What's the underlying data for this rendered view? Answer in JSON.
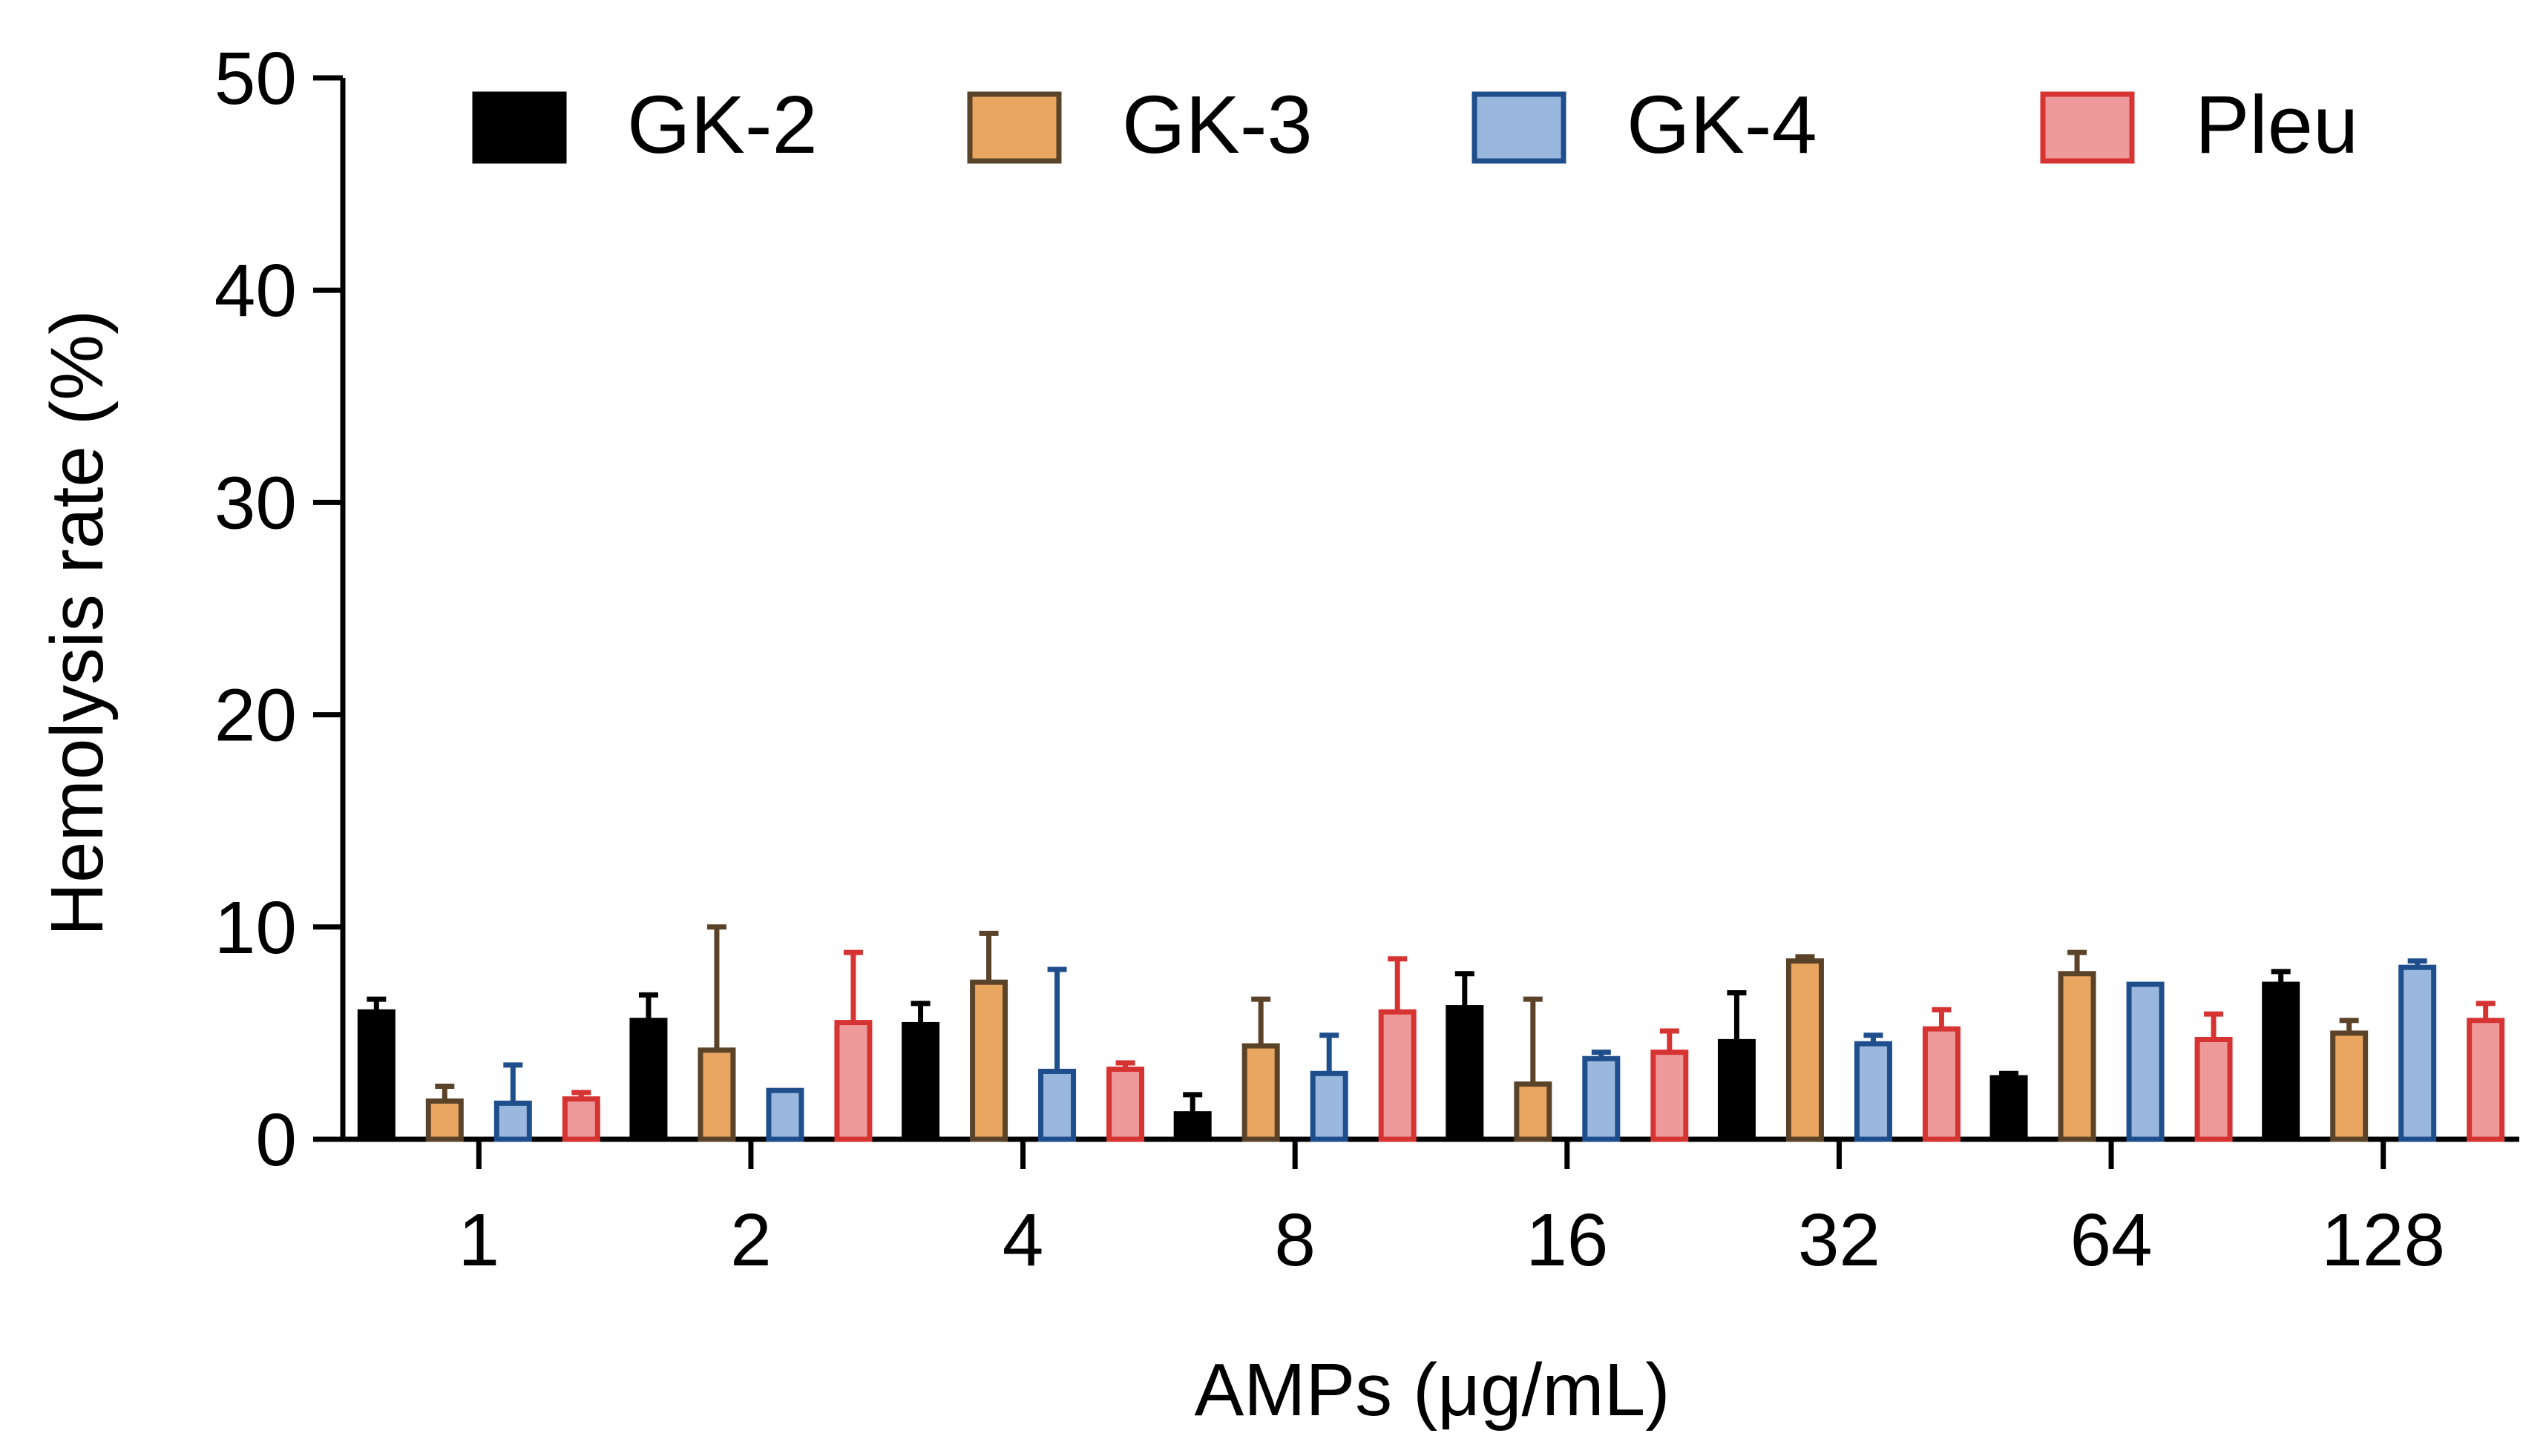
{
  "chart_data": {
    "type": "bar",
    "title": "",
    "xlabel": "AMPs (μg/mL)",
    "ylabel": "Hemolysis rate (%)",
    "ylim": [
      0,
      50
    ],
    "yticks": [
      0,
      10,
      20,
      30,
      40,
      50
    ],
    "ytick_labels": [
      "0",
      "10",
      "20",
      "30",
      "40",
      "50"
    ],
    "grid": false,
    "legend_position": "top",
    "categories": [
      "1",
      "2",
      "4",
      "8",
      "16",
      "32",
      "64",
      "128"
    ],
    "series": [
      {
        "name": "GK-2",
        "fill": "#000000",
        "stroke": "#000000",
        "values": [
          6.0,
          5.6,
          5.4,
          1.2,
          6.2,
          4.6,
          2.9,
          7.3
        ],
        "errors": [
          0.6,
          1.2,
          1.0,
          0.9,
          1.6,
          2.3,
          0.2,
          0.6
        ]
      },
      {
        "name": "GK-3",
        "fill": "#E9A660",
        "stroke": "#5B4329",
        "values": [
          1.8,
          4.2,
          7.4,
          4.4,
          2.6,
          8.4,
          7.8,
          5.0
        ],
        "errors": [
          0.7,
          5.8,
          2.3,
          2.2,
          4.0,
          0.2,
          1.0,
          0.6
        ]
      },
      {
        "name": "GK-4",
        "fill": "#9AB8DE",
        "stroke": "#1F4E8C",
        "values": [
          1.7,
          2.3,
          3.2,
          3.1,
          3.8,
          4.5,
          7.3,
          8.1
        ],
        "errors": [
          1.8,
          0.0,
          4.8,
          1.8,
          0.3,
          0.4,
          0.0,
          0.3
        ]
      },
      {
        "name": "Pleu",
        "fill": "#EE9A9A",
        "stroke": "#D63333",
        "values": [
          1.9,
          5.5,
          3.3,
          6.0,
          4.1,
          5.2,
          4.7,
          5.6
        ],
        "errors": [
          0.3,
          3.3,
          0.3,
          2.5,
          1.0,
          0.9,
          1.2,
          0.8
        ]
      }
    ]
  }
}
